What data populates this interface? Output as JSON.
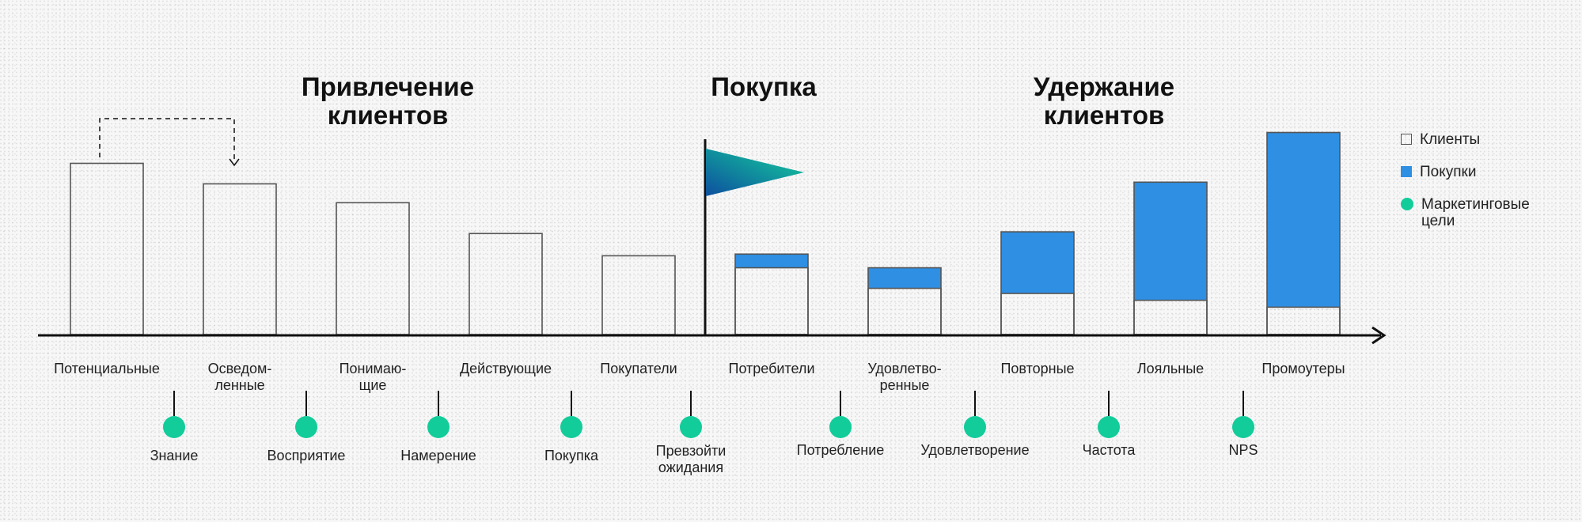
{
  "headings": [
    {
      "id": "acquisition",
      "text": "Привлечение\nклиентов"
    },
    {
      "id": "purchase",
      "text": "Покупка"
    },
    {
      "id": "retention",
      "text": "Удержание\nклиентов"
    }
  ],
  "legend": {
    "clients": "Клиенты",
    "purchases": "Покупки",
    "goals": "Маркетинговые\nцели"
  },
  "colors": {
    "purchases": "#2f8fe3",
    "goals": "#12cc9a",
    "axis": "#111111",
    "bar_outline": "#555555",
    "flag_from": "#0d4f9e",
    "flag_to": "#14d29c"
  },
  "chart_data": {
    "type": "bar",
    "categories": [
      "Потенциальные",
      "Осведом-\nленные",
      "Понимаю-\nщие",
      "Действующие",
      "Покупатели",
      "Потребители",
      "Удовлетво-\nренные",
      "Повторные",
      "Лояльные",
      "Промоутеры"
    ],
    "series": [
      {
        "name": "Клиенты",
        "values": [
          100,
          88,
          77,
          59,
          46,
          39,
          27,
          24,
          20,
          16
        ]
      },
      {
        "name": "Покупки",
        "values": [
          0,
          0,
          0,
          0,
          0,
          8,
          12,
          36,
          69,
          102
        ]
      }
    ],
    "goals": [
      "Знание",
      "Восприятие",
      "Намерение",
      "Покупка",
      "Превзойти\nожидания",
      "Потребление",
      "Удовлетворение",
      "Частота",
      "NPS"
    ],
    "ylim": [
      0,
      120
    ],
    "grid": false,
    "legend_position": "right"
  }
}
